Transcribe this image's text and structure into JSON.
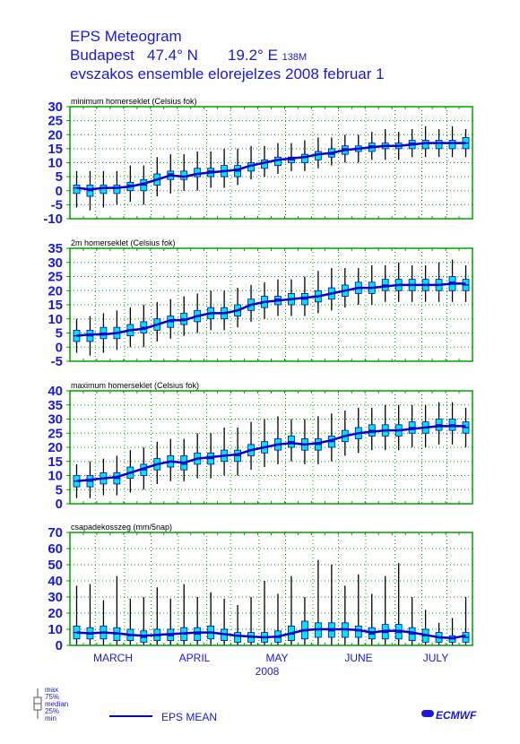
{
  "header": {
    "line1": "EPS Meteogram",
    "city": "Budapest",
    "lat": "47.4° N",
    "lon": "19.2° E",
    "elevation": "138M",
    "line3": "evszakos ensemble elorejelzes 2008 februar 1"
  },
  "x_axis": {
    "months": [
      "MARCH",
      "APRIL",
      "MAY",
      "JUNE",
      "JULY"
    ],
    "year": "2008"
  },
  "legend": {
    "box_labels": [
      "max",
      "75%",
      "median",
      "25%",
      "min"
    ],
    "mean_label": "EPS MEAN",
    "logo": "ECMWF"
  },
  "colors": {
    "text": "#1a1ad0",
    "frame": "#00a000",
    "box_fill": "#00e5e5",
    "mean_line": "#0000cc",
    "whisker": "#000000"
  },
  "chart_data": [
    {
      "type": "box",
      "title": "minimum homerseklet (Celsius fok)",
      "ylim": [
        -10,
        30
      ],
      "yticks": [
        -10,
        -5,
        0,
        5,
        10,
        15,
        20,
        25,
        30
      ],
      "grid": true,
      "median": [
        1,
        0,
        1,
        1,
        2,
        2,
        4,
        6,
        5,
        6,
        7,
        7,
        7,
        9,
        10,
        11,
        11,
        12,
        13,
        13,
        15,
        15,
        16,
        16,
        16,
        17,
        17,
        17,
        17,
        17
      ],
      "mean": [
        1,
        0.5,
        1,
        1,
        1.5,
        2.5,
        4,
        5.5,
        5,
        6,
        6.5,
        7,
        7.5,
        9,
        10,
        11,
        11.5,
        12,
        13,
        13.5,
        14.5,
        15,
        15.5,
        16,
        16,
        16.5,
        17,
        17,
        17,
        17
      ],
      "q1": [
        -1,
        -2,
        -1,
        -1,
        0,
        0,
        2,
        4,
        4,
        5,
        5,
        5,
        5,
        7,
        8,
        9,
        10,
        10,
        11,
        12,
        13,
        14,
        14,
        15,
        15,
        15,
        15,
        15,
        15,
        15
      ],
      "q3": [
        2,
        2,
        2,
        2,
        3,
        4,
        6,
        7,
        7,
        8,
        8,
        9,
        9,
        10,
        11,
        12,
        12,
        13,
        14,
        15,
        16,
        16,
        17,
        17,
        17,
        18,
        18,
        18,
        18,
        19
      ],
      "min": [
        -6,
        -7,
        -6,
        -5,
        -4,
        -5,
        -2,
        -1,
        0,
        0,
        1,
        1,
        2,
        4,
        5,
        6,
        7,
        7,
        8,
        9,
        10,
        10,
        11,
        11,
        11,
        12,
        12,
        12,
        12,
        12
      ],
      "max": [
        7,
        7,
        7,
        7,
        9,
        9,
        12,
        13,
        13,
        14,
        14,
        15,
        15,
        16,
        16,
        17,
        17,
        18,
        19,
        19,
        20,
        20,
        21,
        22,
        21,
        22,
        23,
        22,
        23,
        22
      ]
    },
    {
      "type": "box",
      "title": "2m homerseklet (Celsius fok)",
      "ylim": [
        -5,
        35
      ],
      "yticks": [
        -5,
        0,
        5,
        10,
        15,
        20,
        25,
        30,
        35
      ],
      "grid": true,
      "median": [
        4,
        4,
        5,
        5,
        6,
        7,
        8,
        9,
        10,
        11,
        12,
        12,
        13,
        15,
        16,
        17,
        17,
        17,
        18,
        19,
        20,
        21,
        21,
        22,
        22,
        22,
        22,
        22,
        23,
        22
      ],
      "mean": [
        4,
        4.5,
        4.5,
        5,
        6,
        6.5,
        8,
        9.5,
        9.5,
        11,
        12,
        12,
        13,
        15,
        16,
        16.5,
        17,
        17.5,
        18,
        19,
        20,
        21,
        21,
        21.5,
        22,
        22,
        22,
        22,
        22.5,
        22.5
      ],
      "q1": [
        2,
        2,
        3,
        3,
        4,
        5,
        6,
        7,
        8,
        9,
        10,
        10,
        11,
        13,
        14,
        15,
        15,
        15,
        16,
        17,
        18,
        19,
        19,
        20,
        20,
        20,
        20,
        20,
        20,
        20
      ],
      "q3": [
        6,
        6,
        7,
        7,
        8,
        9,
        10,
        11,
        12,
        13,
        14,
        14,
        15,
        17,
        18,
        18,
        19,
        19,
        20,
        21,
        22,
        23,
        23,
        24,
        24,
        24,
        24,
        24,
        25,
        24
      ],
      "min": [
        -2,
        -3,
        -2,
        -1,
        0,
        0,
        2,
        3,
        4,
        5,
        6,
        6,
        7,
        9,
        10,
        11,
        11,
        11,
        12,
        13,
        14,
        15,
        15,
        16,
        16,
        16,
        16,
        16,
        16,
        16
      ],
      "max": [
        10,
        11,
        12,
        13,
        14,
        15,
        16,
        17,
        18,
        19,
        20,
        20,
        21,
        22,
        23,
        24,
        24,
        25,
        27,
        28,
        28,
        28,
        29,
        29,
        30,
        29,
        29,
        30,
        31,
        29
      ]
    },
    {
      "type": "box",
      "title": "maximum homerseklet (Celsius fok)",
      "ylim": [
        0,
        40
      ],
      "yticks": [
        0,
        5,
        10,
        15,
        20,
        25,
        30,
        35,
        40
      ],
      "grid": true,
      "median": [
        8,
        8,
        9,
        9,
        11,
        12,
        14,
        15,
        14,
        16,
        16,
        17,
        17,
        19,
        20,
        21,
        22,
        21,
        21,
        22,
        24,
        25,
        26,
        26,
        26,
        27,
        27,
        28,
        28,
        27
      ],
      "mean": [
        8,
        8.5,
        9,
        9.5,
        11,
        12.5,
        14,
        15,
        14.5,
        16,
        16.5,
        17,
        17.5,
        19,
        20,
        21,
        21.5,
        21,
        21.5,
        22.5,
        24,
        25,
        25.5,
        26,
        26,
        26.5,
        27,
        27.5,
        27.5,
        27.5
      ],
      "q1": [
        6,
        6,
        7,
        7,
        9,
        10,
        12,
        13,
        12,
        14,
        14,
        15,
        15,
        17,
        18,
        19,
        20,
        19,
        19,
        20,
        22,
        23,
        24,
        24,
        24,
        25,
        25,
        26,
        26,
        25
      ],
      "q3": [
        10,
        10,
        11,
        11,
        13,
        14,
        16,
        17,
        17,
        18,
        18,
        19,
        19,
        21,
        22,
        23,
        24,
        23,
        23,
        24,
        26,
        27,
        28,
        28,
        28,
        29,
        29,
        30,
        30,
        29
      ],
      "min": [
        2,
        2,
        3,
        3,
        4,
        5,
        7,
        8,
        8,
        9,
        9,
        10,
        10,
        12,
        13,
        14,
        15,
        14,
        14,
        15,
        17,
        18,
        19,
        19,
        19,
        20,
        20,
        21,
        21,
        20
      ],
      "max": [
        14,
        15,
        16,
        17,
        19,
        20,
        22,
        23,
        23,
        25,
        25,
        27,
        27,
        29,
        30,
        31,
        30,
        30,
        31,
        32,
        33,
        34,
        34,
        35,
        35,
        35,
        35,
        36,
        36,
        34
      ]
    },
    {
      "type": "box",
      "title": "csapadekosszeg (mm/5nap)",
      "ylim": [
        0,
        70
      ],
      "yticks": [
        0,
        10,
        20,
        30,
        40,
        50,
        60,
        70
      ],
      "grid": true,
      "median": [
        8,
        7,
        8,
        7,
        6,
        5,
        6,
        6,
        7,
        7,
        8,
        7,
        6,
        5,
        5,
        5,
        7,
        9,
        10,
        9,
        10,
        9,
        7,
        8,
        8,
        7,
        6,
        5,
        4,
        5
      ],
      "mean": [
        8,
        7.5,
        8,
        7.5,
        6.5,
        6,
        6.5,
        7,
        7.5,
        8,
        8,
        7,
        6,
        5.5,
        5,
        5.5,
        7.5,
        9.5,
        10,
        10,
        10,
        9.5,
        8,
        9,
        9,
        8,
        6.5,
        5,
        4.5,
        6
      ],
      "q1": [
        4,
        4,
        4,
        3,
        3,
        2,
        3,
        3,
        3,
        3,
        4,
        3,
        2,
        2,
        2,
        2,
        3,
        4,
        5,
        5,
        5,
        5,
        4,
        4,
        4,
        3,
        2,
        2,
        2,
        2
      ],
      "q3": [
        12,
        11,
        12,
        11,
        10,
        9,
        10,
        10,
        11,
        11,
        12,
        10,
        8,
        8,
        8,
        9,
        12,
        15,
        14,
        14,
        14,
        12,
        11,
        13,
        13,
        11,
        10,
        8,
        6,
        8
      ],
      "min": [
        0,
        0,
        0,
        0,
        0,
        0,
        0,
        0,
        0,
        0,
        0,
        0,
        0,
        0,
        0,
        0,
        0,
        0,
        0,
        0,
        0,
        0,
        0,
        0,
        0,
        0,
        0,
        0,
        0,
        0
      ],
      "max": [
        37,
        38,
        28,
        43,
        29,
        30,
        36,
        29,
        38,
        30,
        33,
        29,
        25,
        30,
        40,
        32,
        43,
        30,
        53,
        50,
        37,
        44,
        32,
        43,
        51,
        30,
        22,
        14,
        17,
        30
      ]
    }
  ]
}
